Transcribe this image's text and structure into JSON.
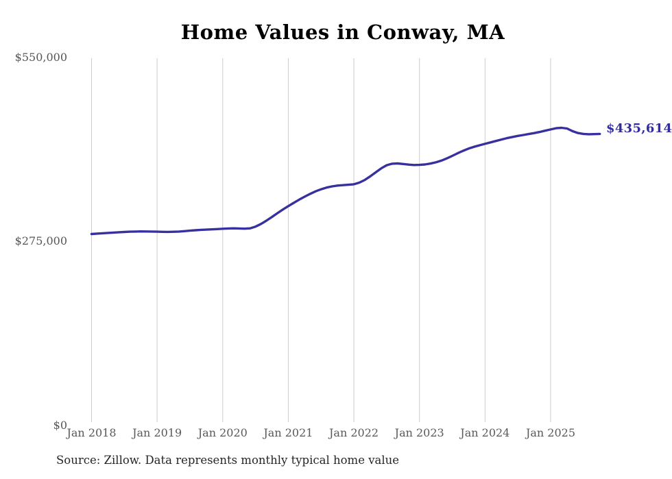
{
  "chart_data": {
    "type": "line",
    "title": "Home Values in Conway, MA",
    "source_note": "Source: Zillow. Data represents monthly typical home value",
    "last_value_label": "$435,614",
    "last_value": 435614,
    "ylim": [
      0,
      550000
    ],
    "y_tick_labels": [
      "$550,000",
      "$275,000",
      "$0"
    ],
    "y_tick_values": [
      550000,
      275000,
      0
    ],
    "x_tick_labels": [
      "Jan 2018",
      "Jan 2019",
      "Jan 2020",
      "Jan 2021",
      "Jan 2022",
      "Jan 2023",
      "Jan 2024",
      "Jan 2025"
    ],
    "x_start": "2018-01",
    "x_end": "2025-10",
    "frequency": "monthly",
    "grid": true,
    "legend": false,
    "line_color": "#37319f",
    "gridline_color": "#cccccc",
    "series": [
      {
        "name": "Typical home value ($)",
        "values": [
          284300,
          284900,
          285500,
          286000,
          286500,
          287000,
          287400,
          287800,
          288100,
          288300,
          288200,
          288000,
          287800,
          287600,
          287500,
          287700,
          288100,
          288700,
          289400,
          290000,
          290600,
          291000,
          291400,
          291800,
          292300,
          292700,
          292900,
          292700,
          292400,
          292900,
          295500,
          299500,
          304500,
          310000,
          315800,
          321300,
          326500,
          331500,
          336300,
          340800,
          345000,
          348800,
          352000,
          354500,
          356300,
          357500,
          358200,
          358800,
          359500,
          362000,
          366000,
          371500,
          377500,
          383500,
          388300,
          390600,
          391000,
          390200,
          389200,
          388600,
          388800,
          389500,
          390800,
          392700,
          395300,
          398600,
          402400,
          406400,
          410200,
          413500,
          416200,
          418500,
          420600,
          422800,
          425000,
          427200,
          429200,
          431000,
          432600,
          434000,
          435400,
          436900,
          438600,
          440500,
          442400,
          444200,
          444900,
          443800,
          439800,
          437000,
          435600,
          435100,
          435300,
          435614
        ]
      }
    ]
  }
}
